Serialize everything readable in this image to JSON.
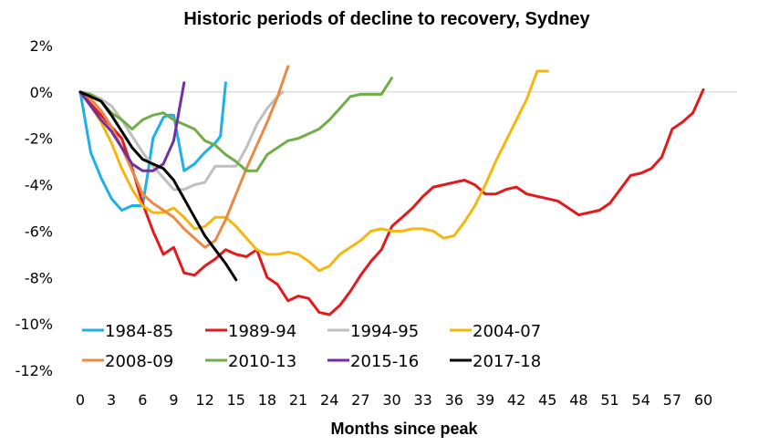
{
  "chart_data": {
    "type": "line",
    "title": "Historic periods of decline to recovery, Sydney",
    "xlabel": "Months since peak",
    "ylabel": "",
    "xlim": [
      0,
      60
    ],
    "ylim": [
      -12,
      2
    ],
    "x_ticks": [
      0,
      3,
      6,
      9,
      12,
      15,
      18,
      21,
      24,
      27,
      30,
      33,
      36,
      39,
      42,
      45,
      48,
      51,
      54,
      57,
      60
    ],
    "x_tick_labels": [
      "0",
      "3",
      "6",
      "9",
      "12",
      "15",
      "18",
      "21",
      "24",
      "27",
      "30",
      "33",
      "36",
      "39",
      "42",
      "45",
      "48",
      "51",
      "54",
      "57",
      "60"
    ],
    "y_ticks": [
      2,
      0,
      -2,
      -4,
      -6,
      -8,
      -10,
      -12
    ],
    "y_tick_labels": [
      "2%",
      "0%",
      "-2%",
      "-4%",
      "-6%",
      "-8%",
      "-10%",
      "-12%"
    ],
    "grid": "zero-line only",
    "legend_position": "bottom-left inside plot, 2 rows",
    "series": [
      {
        "name": "1984-85",
        "color": "#1fb0e6",
        "x": [
          0,
          1,
          2,
          3,
          4,
          5,
          6,
          6.5,
          7,
          8,
          8.5,
          9,
          10,
          11,
          12,
          13,
          13.5,
          14
        ],
        "y": [
          0,
          -2.6,
          -3.7,
          -4.6,
          -5.1,
          -4.9,
          -4.9,
          -3.5,
          -2.0,
          -1.1,
          -1.0,
          -1.0,
          -3.4,
          -3.1,
          -2.6,
          -2.2,
          -1.9,
          0.4
        ]
      },
      {
        "name": "1989-94",
        "color": "#e3191c",
        "x": [
          0,
          1,
          2,
          3,
          4,
          5,
          6,
          7,
          8,
          9,
          10,
          11,
          12,
          13,
          14,
          15,
          16,
          17,
          18,
          19,
          20,
          21,
          22,
          23,
          24,
          25,
          26,
          27,
          28,
          29,
          30,
          31,
          32,
          33,
          34,
          35,
          36,
          37,
          38,
          39,
          40,
          41,
          42,
          43,
          44,
          45,
          46,
          47,
          48,
          49,
          50,
          51,
          52,
          53,
          54,
          55,
          56,
          57,
          58,
          59,
          60
        ],
        "y": [
          0,
          -0.5,
          -1.0,
          -1.5,
          -2.0,
          -3.3,
          -4.8,
          -6.0,
          -7.0,
          -6.7,
          -7.8,
          -7.9,
          -7.5,
          -7.2,
          -6.8,
          -7.0,
          -7.1,
          -6.8,
          -8.0,
          -8.3,
          -9.0,
          -8.8,
          -8.9,
          -9.5,
          -9.6,
          -9.2,
          -8.6,
          -7.9,
          -7.3,
          -6.8,
          -5.8,
          -5.4,
          -5.0,
          -4.5,
          -4.1,
          -4.0,
          -3.9,
          -3.8,
          -4.0,
          -4.4,
          -4.4,
          -4.2,
          -4.1,
          -4.4,
          -4.5,
          -4.6,
          -4.7,
          -5.0,
          -5.3,
          -5.2,
          -5.1,
          -4.8,
          -4.2,
          -3.6,
          -3.5,
          -3.3,
          -2.8,
          -1.6,
          -1.3,
          -0.9,
          0.1
        ]
      },
      {
        "name": "1994-95",
        "color": "#bfbfbf",
        "x": [
          0,
          1,
          2,
          3,
          4,
          5,
          6,
          7,
          8,
          9,
          10,
          11,
          12,
          13,
          14,
          15,
          16,
          17,
          18,
          19,
          19.5
        ],
        "y": [
          0,
          -0.1,
          -0.3,
          -0.6,
          -1.2,
          -1.9,
          -2.6,
          -3.2,
          -3.7,
          -4.2,
          -4.2,
          -4.0,
          -3.9,
          -3.2,
          -3.2,
          -3.2,
          -2.4,
          -1.4,
          -0.7,
          -0.2,
          0.0
        ]
      },
      {
        "name": "2004-07",
        "color": "#f5b70f",
        "x": [
          0,
          1,
          2,
          3,
          4,
          5,
          6,
          7,
          8,
          9,
          10,
          11,
          12,
          13,
          14,
          15,
          16,
          17,
          18,
          19,
          20,
          21,
          22,
          23,
          24,
          25,
          26,
          27,
          28,
          29,
          30,
          31,
          32,
          33,
          34,
          35,
          36,
          37,
          38,
          39,
          40,
          41,
          42,
          43,
          44,
          45
        ],
        "y": [
          0,
          -0.6,
          -1.3,
          -2.2,
          -3.3,
          -4.2,
          -4.9,
          -5.2,
          -5.2,
          -5.0,
          -5.4,
          -5.9,
          -5.8,
          -5.4,
          -5.4,
          -5.8,
          -6.3,
          -6.8,
          -7.0,
          -7.0,
          -6.9,
          -7.0,
          -7.3,
          -7.7,
          -7.5,
          -7.0,
          -6.7,
          -6.4,
          -6.0,
          -5.9,
          -6.0,
          -6.0,
          -5.9,
          -5.9,
          -6.0,
          -6.3,
          -6.2,
          -5.6,
          -4.9,
          -4.0,
          -3.0,
          -2.1,
          -1.2,
          -0.3,
          0.9,
          0.9
        ]
      },
      {
        "name": "2008-09",
        "color": "#ea8a45",
        "x": [
          0,
          1,
          2,
          3,
          4,
          5,
          6,
          7,
          8,
          9,
          10,
          11,
          12,
          13,
          14,
          15,
          16,
          17,
          18,
          19,
          20
        ],
        "y": [
          0,
          -0.3,
          -0.8,
          -1.5,
          -2.4,
          -3.4,
          -4.4,
          -4.8,
          -5.1,
          -5.4,
          -5.9,
          -6.3,
          -6.7,
          -6.4,
          -5.5,
          -4.4,
          -3.3,
          -2.3,
          -1.3,
          -0.2,
          1.1
        ]
      },
      {
        "name": "2010-13",
        "color": "#70ad47",
        "x": [
          0,
          1,
          2,
          3,
          4,
          5,
          6,
          7,
          8,
          9,
          10,
          11,
          12,
          13,
          14,
          15,
          16,
          17,
          18,
          19,
          20,
          21,
          22,
          23,
          24,
          25,
          26,
          27,
          28,
          29,
          30
        ],
        "y": [
          0,
          -0.1,
          -0.4,
          -0.9,
          -1.2,
          -1.6,
          -1.2,
          -1.0,
          -0.9,
          -1.2,
          -1.4,
          -1.6,
          -2.1,
          -2.3,
          -2.7,
          -3.0,
          -3.4,
          -3.4,
          -2.7,
          -2.4,
          -2.1,
          -2.0,
          -1.8,
          -1.6,
          -1.2,
          -0.7,
          -0.2,
          -0.1,
          -0.1,
          -0.1,
          0.6
        ]
      },
      {
        "name": "2015-16",
        "color": "#7030a0",
        "x": [
          0,
          1,
          2,
          3,
          4,
          5,
          6,
          7,
          8,
          9,
          10
        ],
        "y": [
          0,
          -0.6,
          -1.2,
          -1.7,
          -2.4,
          -3.1,
          -3.4,
          -3.4,
          -3.1,
          -2.1,
          0.4
        ]
      },
      {
        "name": "2017-18",
        "color": "#000000",
        "x": [
          0,
          1,
          2,
          3,
          4,
          5,
          6,
          7,
          8,
          9,
          10,
          11,
          12,
          13,
          14,
          15
        ],
        "y": [
          0,
          -0.2,
          -0.4,
          -1.0,
          -1.7,
          -2.4,
          -2.9,
          -3.1,
          -3.3,
          -3.8,
          -4.6,
          -5.4,
          -6.2,
          -6.8,
          -7.4,
          -8.1
        ]
      }
    ]
  }
}
